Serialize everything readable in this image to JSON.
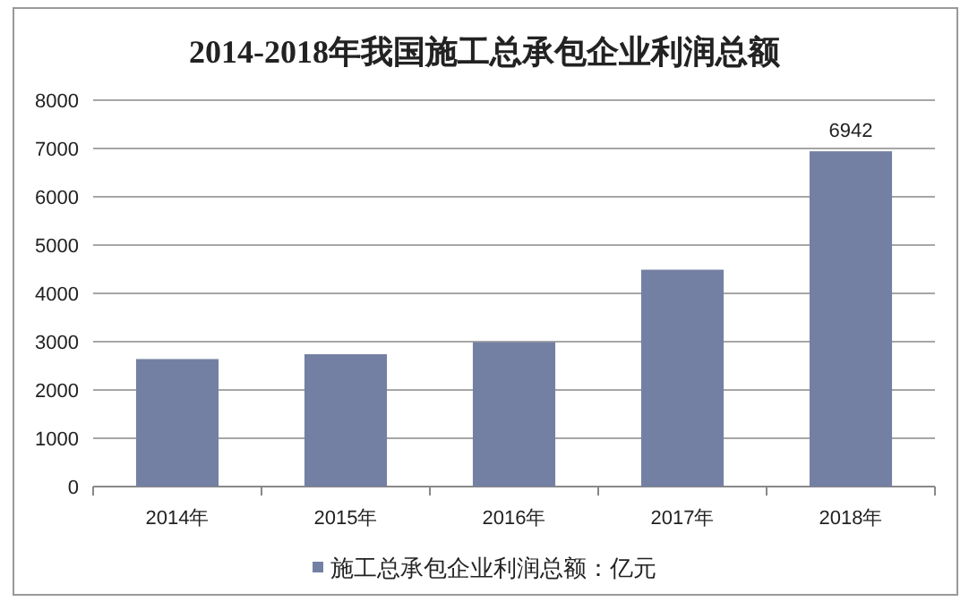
{
  "chart_data": {
    "type": "bar",
    "title": "2014-2018年我国施工总承包企业利润总额",
    "categories": [
      "2014年",
      "2015年",
      "2016年",
      "2017年",
      "2018年"
    ],
    "series": [
      {
        "name": "施工总承包企业利润总额：亿元",
        "color": "#7480a3",
        "values": [
          2640,
          2740,
          2990,
          4490,
          6942
        ],
        "value_labels": [
          null,
          null,
          null,
          null,
          "6942"
        ]
      }
    ],
    "ylim": [
      0,
      8000
    ],
    "yticks": [
      0,
      1000,
      2000,
      3000,
      4000,
      5000,
      6000,
      7000,
      8000
    ],
    "grid": "y",
    "legend": "bottom"
  }
}
